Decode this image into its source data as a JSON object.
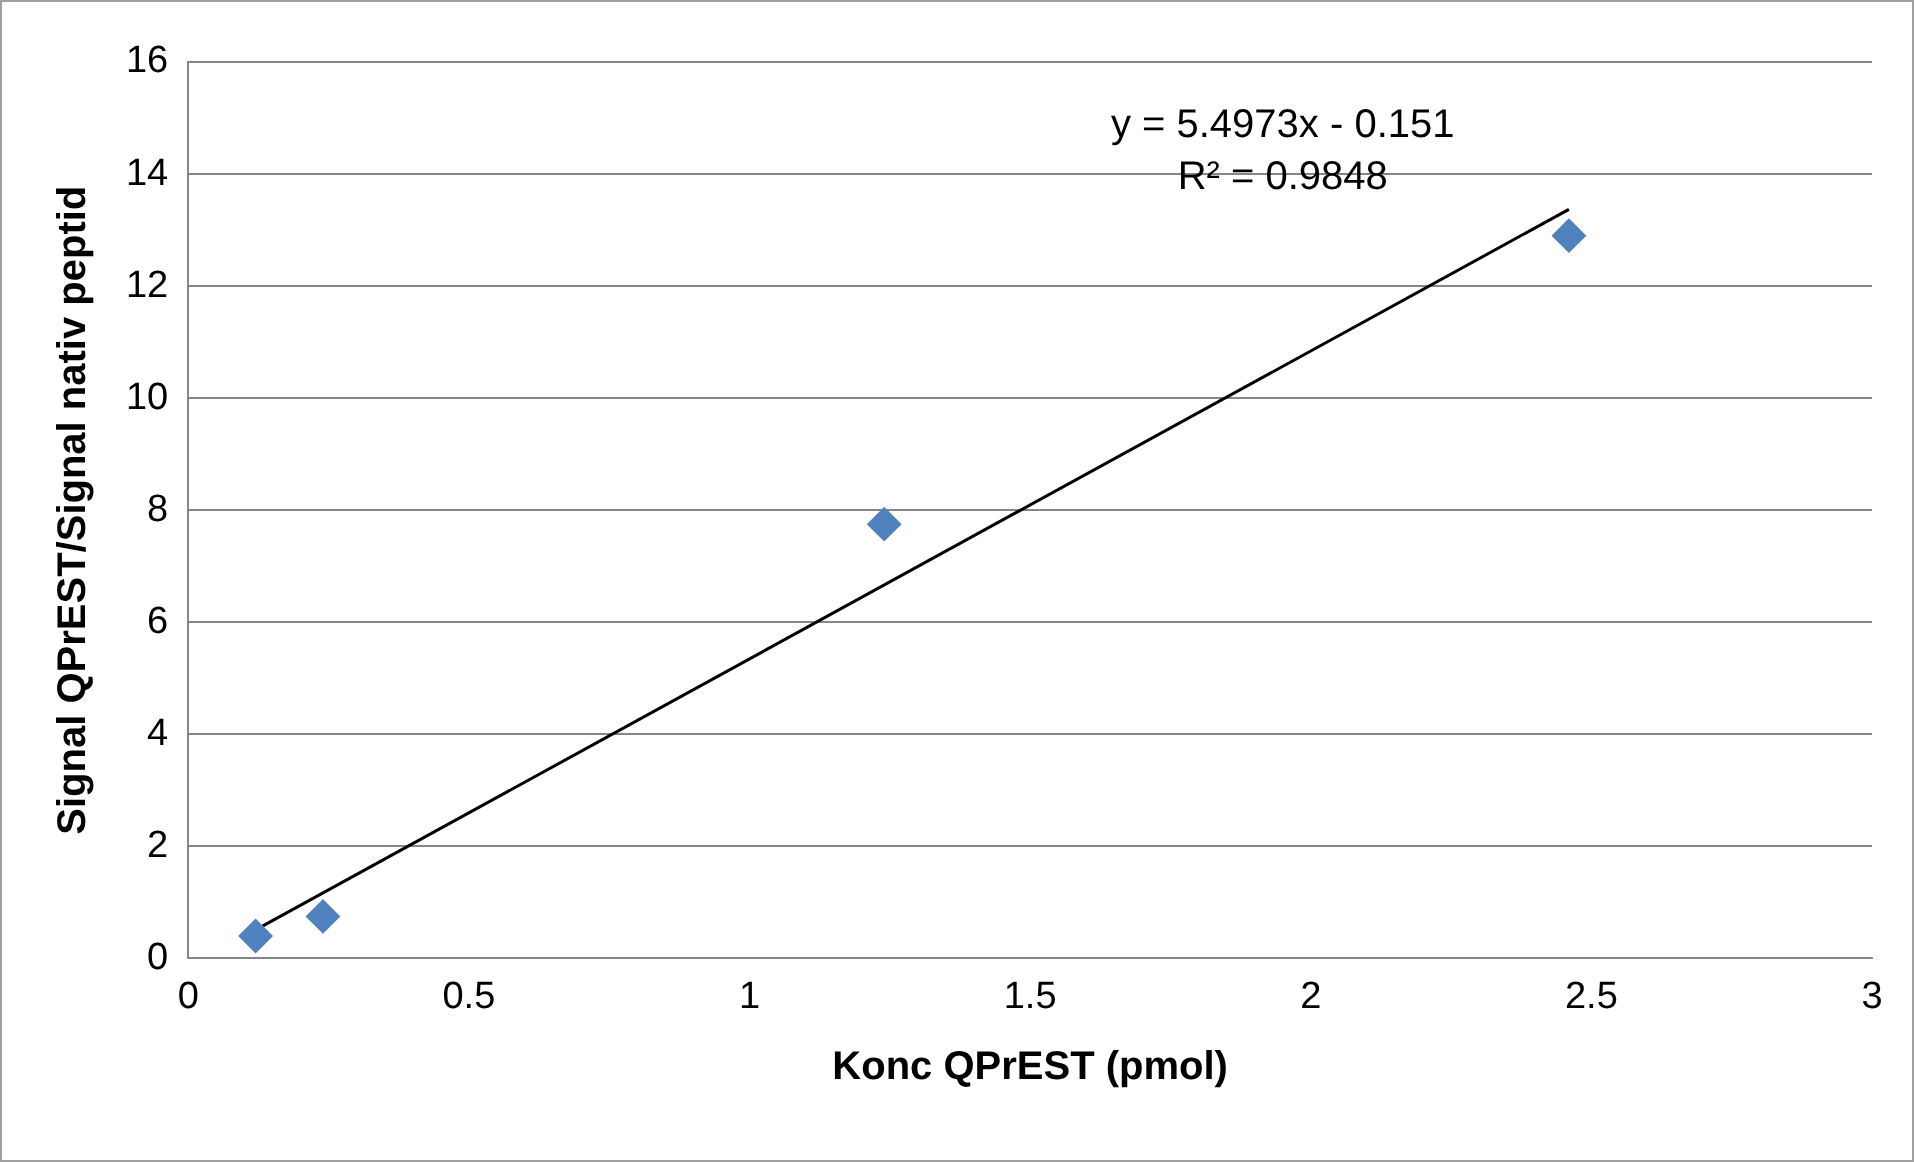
{
  "chart_data": {
    "type": "scatter",
    "xlabel": "Konc QPrEST (pmol)",
    "ylabel": "Signal QPrEST/Signal nativ peptid",
    "xlim": [
      0,
      3
    ],
    "xticks": [
      0,
      0.5,
      1,
      1.5,
      2,
      2.5,
      3
    ],
    "ylim": [
      0,
      16
    ],
    "yticks": [
      0,
      2,
      4,
      6,
      8,
      10,
      12,
      14,
      16
    ],
    "grid": "y",
    "legend": false,
    "marker": "diamond",
    "series": [
      {
        "type": "scatter",
        "color": "#4f81bd",
        "x": [
          0.12,
          0.24,
          1.24,
          2.46
        ],
        "values": [
          0.4,
          0.75,
          7.75,
          12.9
        ]
      },
      {
        "type": "line",
        "color": "#000000",
        "x": [
          0.12,
          2.46
        ],
        "values": [
          0.51,
          13.37
        ],
        "marker": "none"
      }
    ],
    "annotations": [
      "y = 5.4973x - 0.151",
      "R² = 0.9848"
    ]
  }
}
